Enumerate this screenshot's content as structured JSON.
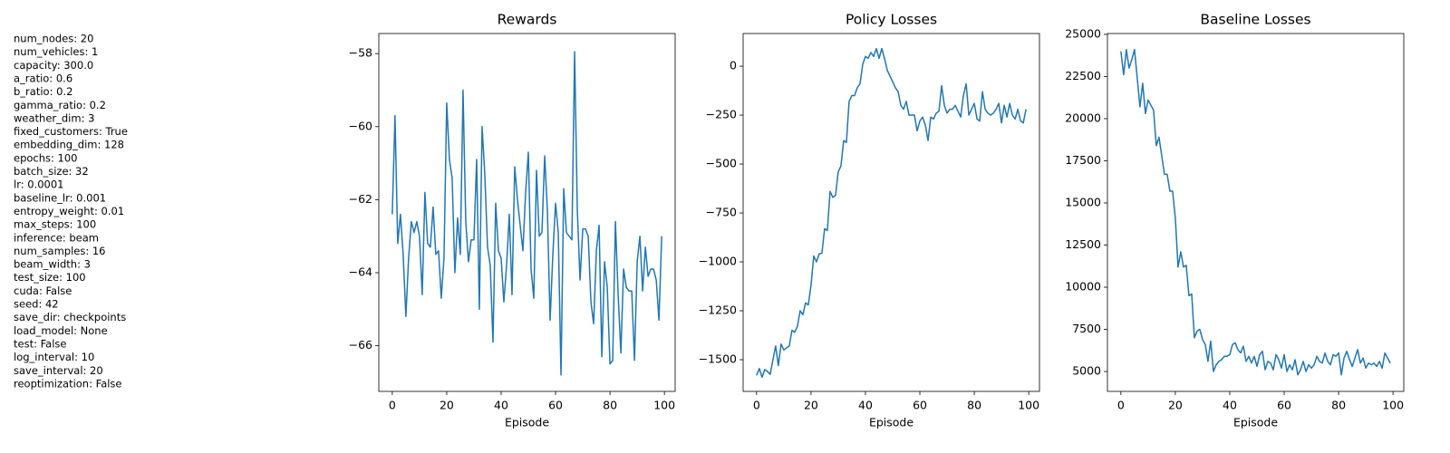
{
  "parameters": [
    "num_nodes: 20",
    "num_vehicles: 1",
    "capacity: 300.0",
    "a_ratio: 0.6",
    "b_ratio: 0.2",
    "gamma_ratio: 0.2",
    "weather_dim: 3",
    "fixed_customers: True",
    "embedding_dim: 128",
    "epochs: 100",
    "batch_size: 32",
    "lr: 0.0001",
    "baseline_lr: 0.001",
    "entropy_weight: 0.01",
    "max_steps: 100",
    "inference: beam",
    "num_samples: 16",
    "beam_width: 3",
    "test_size: 100",
    "cuda: False",
    "seed: 42",
    "save_dir: checkpoints",
    "load_model: None",
    "test: False",
    "log_interval: 10",
    "save_interval: 20",
    "reoptimization: False"
  ],
  "chart_data": [
    {
      "type": "line",
      "title": "Rewards",
      "x_label": "Episode",
      "x": [
        0,
        1,
        2,
        3,
        4,
        5,
        6,
        7,
        8,
        9,
        10,
        11,
        12,
        13,
        14,
        15,
        16,
        17,
        18,
        19,
        20,
        21,
        22,
        23,
        24,
        25,
        26,
        27,
        28,
        29,
        30,
        31,
        32,
        33,
        34,
        35,
        36,
        37,
        38,
        39,
        40,
        41,
        42,
        43,
        44,
        45,
        46,
        47,
        48,
        49,
        50,
        51,
        52,
        53,
        54,
        55,
        56,
        57,
        58,
        59,
        60,
        61,
        62,
        63,
        64,
        65,
        66,
        67,
        68,
        69,
        70,
        71,
        72,
        73,
        74,
        75,
        76,
        77,
        78,
        79,
        80,
        81,
        82,
        83,
        84,
        85,
        86,
        87,
        88,
        89,
        90,
        91,
        92,
        93,
        94,
        95,
        96,
        97,
        98,
        99
      ],
      "series": [
        {
          "color": "#1f77b4",
          "values": [
            -62.4,
            -59.7,
            -63.2,
            -62.4,
            -63.5,
            -65.2,
            -63.6,
            -62.6,
            -62.9,
            -62.6,
            -63.0,
            -64.6,
            -61.8,
            -63.2,
            -63.3,
            -62.2,
            -63.5,
            -63.4,
            -64.7,
            -63.6,
            -59.35,
            -60.9,
            -61.4,
            -64.0,
            -62.5,
            -63.5,
            -59.0,
            -62.6,
            -63.7,
            -63.1,
            -63.1,
            -60.9,
            -65.0,
            -60.0,
            -61.3,
            -63.3,
            -63.8,
            -65.9,
            -62.1,
            -63.4,
            -63.6,
            -64.8,
            -63.8,
            -62.4,
            -64.6,
            -61.1,
            -62.0,
            -62.7,
            -63.4,
            -61.8,
            -60.7,
            -63.9,
            -64.7,
            -61.2,
            -63.0,
            -62.9,
            -60.8,
            -62.3,
            -65.3,
            -63.5,
            -62.1,
            -62.9,
            -66.8,
            -61.7,
            -62.9,
            -63.0,
            -63.1,
            -57.95,
            -62.3,
            -64.2,
            -62.8,
            -62.8,
            -63.0,
            -64.8,
            -65.4,
            -63.4,
            -62.7,
            -66.3,
            -63.7,
            -64.4,
            -66.5,
            -66.4,
            -62.6,
            -64.6,
            -66.2,
            -63.9,
            -64.4,
            -64.5,
            -64.5,
            -66.4,
            -63.7,
            -63.0,
            -64.5,
            -63.3,
            -64.1,
            -63.9,
            -63.9,
            -64.2,
            -65.3,
            -63.0
          ]
        }
      ],
      "xlim": [
        -4.95,
        103.95
      ],
      "xticks": [
        0,
        20,
        40,
        60,
        80,
        100
      ],
      "ylim": [
        -67.25,
        -57.45
      ],
      "yticks": [
        {
          "value": -66,
          "label": "−66"
        },
        {
          "value": -64,
          "label": "−64"
        },
        {
          "value": -62,
          "label": "−62"
        },
        {
          "value": -60,
          "label": "−60"
        },
        {
          "value": -58,
          "label": "−58"
        }
      ]
    },
    {
      "type": "line",
      "title": "Policy Losses",
      "x_label": "Episode",
      "x": [
        0,
        1,
        2,
        3,
        4,
        5,
        6,
        7,
        8,
        9,
        10,
        11,
        12,
        13,
        14,
        15,
        16,
        17,
        18,
        19,
        20,
        21,
        22,
        23,
        24,
        25,
        26,
        27,
        28,
        29,
        30,
        31,
        32,
        33,
        34,
        35,
        36,
        37,
        38,
        39,
        40,
        41,
        42,
        43,
        44,
        45,
        46,
        47,
        48,
        49,
        50,
        51,
        52,
        53,
        54,
        55,
        56,
        57,
        58,
        59,
        60,
        61,
        62,
        63,
        64,
        65,
        66,
        67,
        68,
        69,
        70,
        71,
        72,
        73,
        74,
        75,
        76,
        77,
        78,
        79,
        80,
        81,
        82,
        83,
        84,
        85,
        86,
        87,
        88,
        89,
        90,
        91,
        92,
        93,
        94,
        95,
        96,
        97,
        98,
        99
      ],
      "series": [
        {
          "color": "#1f77b4",
          "values": [
            -1580,
            -1545,
            -1590,
            -1550,
            -1560,
            -1575,
            -1500,
            -1430,
            -1530,
            -1420,
            -1450,
            -1440,
            -1430,
            -1350,
            -1360,
            -1330,
            -1250,
            -1270,
            -1210,
            -1220,
            -1120,
            -970,
            -1000,
            -960,
            -955,
            -830,
            -840,
            -640,
            -670,
            -660,
            -540,
            -510,
            -380,
            -390,
            -180,
            -150,
            -150,
            -110,
            -90,
            10,
            50,
            40,
            70,
            50,
            90,
            40,
            90,
            40,
            -20,
            -50,
            -80,
            -110,
            -130,
            -200,
            -220,
            -180,
            -250,
            -250,
            -250,
            -330,
            -280,
            -260,
            -300,
            -380,
            -260,
            -270,
            -240,
            -230,
            -100,
            -200,
            -240,
            -220,
            -220,
            -200,
            -230,
            -260,
            -150,
            -90,
            -250,
            -220,
            -190,
            -270,
            -280,
            -130,
            -220,
            -240,
            -250,
            -240,
            -220,
            -190,
            -290,
            -200,
            -260,
            -190,
            -250,
            -270,
            -220,
            -280,
            -290,
            -220
          ]
        }
      ],
      "xlim": [
        -4.95,
        103.95
      ],
      "xticks": [
        0,
        20,
        40,
        60,
        80,
        100
      ],
      "ylim": [
        -1662,
        167
      ],
      "yticks": [
        {
          "value": -1500,
          "label": "−1500"
        },
        {
          "value": -1250,
          "label": "−1250"
        },
        {
          "value": -1000,
          "label": "−1000"
        },
        {
          "value": -750,
          "label": "−750"
        },
        {
          "value": -500,
          "label": "−500"
        },
        {
          "value": -250,
          "label": "−250"
        },
        0
      ]
    },
    {
      "type": "line",
      "title": "Baseline Losses",
      "x_label": "Episode",
      "x": [
        0,
        1,
        2,
        3,
        4,
        5,
        6,
        7,
        8,
        9,
        10,
        11,
        12,
        13,
        14,
        15,
        16,
        17,
        18,
        19,
        20,
        21,
        22,
        23,
        24,
        25,
        26,
        27,
        28,
        29,
        30,
        31,
        32,
        33,
        34,
        35,
        36,
        37,
        38,
        39,
        40,
        41,
        42,
        43,
        44,
        45,
        46,
        47,
        48,
        49,
        50,
        51,
        52,
        53,
        54,
        55,
        56,
        57,
        58,
        59,
        60,
        61,
        62,
        63,
        64,
        65,
        66,
        67,
        68,
        69,
        70,
        71,
        72,
        73,
        74,
        75,
        76,
        77,
        78,
        79,
        80,
        81,
        82,
        83,
        84,
        85,
        86,
        87,
        88,
        89,
        90,
        91,
        92,
        93,
        94,
        95,
        96,
        97,
        98,
        99
      ],
      "series": [
        {
          "color": "#1f77b4",
          "values": [
            24000,
            22600,
            24100,
            23000,
            23500,
            24100,
            22400,
            20700,
            22100,
            20300,
            21100,
            20800,
            20500,
            18400,
            18900,
            17800,
            16700,
            16700,
            15700,
            15700,
            14100,
            11200,
            12100,
            11200,
            11300,
            9500,
            9600,
            7000,
            7400,
            7500,
            6900,
            6600,
            5600,
            6800,
            5000,
            5400,
            5600,
            5700,
            5900,
            5900,
            6000,
            6600,
            6700,
            6300,
            6100,
            6500,
            5600,
            5900,
            5500,
            5900,
            5300,
            6000,
            6200,
            5100,
            5600,
            5500,
            5100,
            6000,
            5700,
            5200,
            6000,
            5000,
            5400,
            5100,
            5700,
            4800,
            5100,
            5600,
            5000,
            5400,
            5200,
            5400,
            5900,
            5600,
            5500,
            6100,
            5600,
            5400,
            6000,
            5900,
            6100,
            4800,
            5800,
            6200,
            5700,
            5300,
            5800,
            6300,
            5500,
            5800,
            5200,
            5500,
            5400,
            5500,
            5300,
            5600,
            5200,
            6100,
            5800,
            5500
          ]
        }
      ],
      "xlim": [
        -4.95,
        103.95
      ],
      "xticks": [
        0,
        20,
        40,
        60,
        80,
        100
      ],
      "ylim": [
        3820,
        25050
      ],
      "yticks": [
        5000,
        7500,
        10000,
        12500,
        15000,
        17500,
        20000,
        22500,
        25000
      ]
    }
  ]
}
